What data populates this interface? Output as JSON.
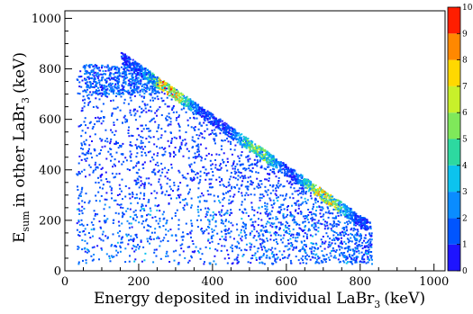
{
  "chart_data": {
    "type": "heatmap",
    "xlabel": "Energy deposited in individual LaBr",
    "xlabel_sub": "3",
    "xlabel_unit": "(keV)",
    "ylabel_main": "E",
    "ylabel_sub": "sum",
    "ylabel_mid": "in other LaBr",
    "ylabel_sub2": "3",
    "ylabel_unit": "(keV)",
    "xlim": [
      0,
      1030
    ],
    "ylim": [
      0,
      1030
    ],
    "zlim": [
      0,
      10
    ],
    "xticks": [
      "0",
      "200",
      "400",
      "600",
      "800",
      "1000"
    ],
    "xtick_values": [
      0,
      200,
      400,
      600,
      800,
      1000
    ],
    "yticks": [
      "0",
      "200",
      "400",
      "600",
      "800",
      "1000"
    ],
    "ytick_values": [
      0,
      200,
      400,
      600,
      800,
      1000
    ],
    "zticks": [
      "0",
      "1",
      "2",
      "3",
      "4",
      "5",
      "6",
      "7",
      "8",
      "9",
      "10"
    ],
    "ztick_values": [
      0,
      1,
      2,
      3,
      4,
      5,
      6,
      7,
      8,
      9,
      10
    ],
    "sum_line_kev": 1022,
    "diagonal_band": {
      "x_min": 150,
      "x_max": 820,
      "peak_counts_at_x": [
        [
          280,
          10
        ],
        [
          520,
          7
        ],
        [
          700,
          9
        ]
      ]
    },
    "colorscale": [
      "#7a00ff",
      "#1e14ff",
      "#0055ff",
      "#0a8cff",
      "#0cc3ee",
      "#2dd9a0",
      "#7fe85a",
      "#c8f02a",
      "#ffd800",
      "#ff8800",
      "#ff1e00"
    ],
    "grid": false,
    "legend": "colorbar-right"
  }
}
